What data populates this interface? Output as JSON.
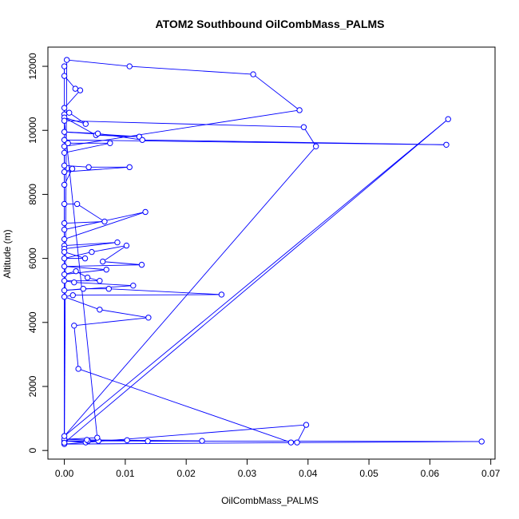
{
  "chart_data": {
    "type": "scatter",
    "title": "ATOM2 Southbound OilCombMass_PALMS",
    "xlabel": "OilCombMass_PALMS",
    "ylabel": "Altitude (m)",
    "xlim": [
      -0.0027,
      0.0707
    ],
    "ylim": [
      -270,
      12600
    ],
    "x_ticks": [
      0.0,
      0.01,
      0.02,
      0.03,
      0.04,
      0.05,
      0.06,
      0.07
    ],
    "x_tick_labels": [
      "0.00",
      "0.01",
      "0.02",
      "0.03",
      "0.04",
      "0.05",
      "0.06",
      "0.07"
    ],
    "y_ticks": [
      0,
      2000,
      4000,
      6000,
      8000,
      10000,
      12000
    ],
    "y_tick_labels": [
      "0",
      "2000",
      "4000",
      "6000",
      "8000",
      "10000",
      "12000"
    ],
    "grid": false,
    "series_color": "#0000ff",
    "connected": true,
    "marker": "open-circle",
    "series": [
      {
        "points": [
          [
            0.0,
            250
          ],
          [
            0.0004,
            12200
          ],
          [
            0.0107,
            12000
          ],
          [
            0.031,
            11750
          ],
          [
            0.0386,
            10630
          ],
          [
            0.0,
            9500
          ],
          [
            0.0,
            230
          ],
          [
            0.0,
            12000
          ],
          [
            0.0,
            11700
          ],
          [
            0.0018,
            11300
          ],
          [
            0.0026,
            11250
          ],
          [
            0.0,
            10700
          ],
          [
            0.0,
            10500
          ],
          [
            0.0008,
            10550
          ],
          [
            0.0035,
            10200
          ],
          [
            0.0,
            10400
          ],
          [
            0.0052,
            9850
          ],
          [
            0.0123,
            9800
          ],
          [
            0.0,
            9950
          ],
          [
            0.0055,
            9900
          ],
          [
            0.0128,
            9700
          ],
          [
            0.0627,
            9550
          ],
          [
            0.0,
            9700
          ],
          [
            0.0006,
            9600
          ],
          [
            0.0075,
            9600
          ],
          [
            0.0,
            9300
          ],
          [
            0.0,
            8900
          ],
          [
            0.004,
            8850
          ],
          [
            0.0107,
            8850
          ],
          [
            0.0,
            8700
          ],
          [
            0.0013,
            8800
          ],
          [
            0.0,
            8300
          ],
          [
            0.0,
            7700
          ],
          [
            0.0021,
            7700
          ],
          [
            0.0066,
            7150
          ],
          [
            0.0,
            7100
          ],
          [
            0.0,
            6900
          ],
          [
            0.0133,
            7450
          ],
          [
            0.0,
            6600
          ],
          [
            0.0,
            6400
          ],
          [
            0.0087,
            6500
          ],
          [
            0.0,
            6300
          ],
          [
            0.0,
            6200
          ],
          [
            0.0034,
            6000
          ],
          [
            0.0,
            6000
          ],
          [
            0.0045,
            6200
          ],
          [
            0.0102,
            6400
          ],
          [
            0.0063,
            5900
          ],
          [
            0.0127,
            5800
          ],
          [
            0.0,
            5750
          ],
          [
            0.0069,
            5650
          ],
          [
            0.0,
            5500
          ],
          [
            0.0019,
            5600
          ],
          [
            0.0038,
            5400
          ],
          [
            0.0058,
            5300
          ],
          [
            0.0,
            5300
          ],
          [
            0.0016,
            5250
          ],
          [
            0.0113,
            5150
          ],
          [
            0.0,
            5000
          ],
          [
            0.0031,
            5050
          ],
          [
            0.0073,
            5050
          ],
          [
            0.0258,
            4870
          ],
          [
            0.0014,
            4850
          ],
          [
            0.0,
            4800
          ],
          [
            0.0058,
            4400
          ],
          [
            0.0138,
            4150
          ],
          [
            0.0016,
            3900
          ],
          [
            0.0023,
            2550
          ],
          [
            0.0372,
            250
          ],
          [
            0.0382,
            250
          ],
          [
            0.0397,
            800
          ],
          [
            0.0,
            200
          ],
          [
            0.0685,
            280
          ],
          [
            0.0,
            300
          ],
          [
            0.0035,
            250
          ],
          [
            0.0039,
            300
          ],
          [
            0.0056,
            300
          ],
          [
            0.0103,
            320
          ],
          [
            0.0137,
            290
          ],
          [
            0.0226,
            300
          ],
          [
            0.0037,
            330
          ],
          [
            0.0,
            350
          ],
          [
            0.0054,
            400
          ],
          [
            0.0,
            10300
          ],
          [
            0.0393,
            10100
          ],
          [
            0.0413,
            9500
          ],
          [
            0.0,
            450
          ],
          [
            0.063,
            10350
          ],
          [
            0.0,
            240
          ]
        ]
      }
    ]
  }
}
